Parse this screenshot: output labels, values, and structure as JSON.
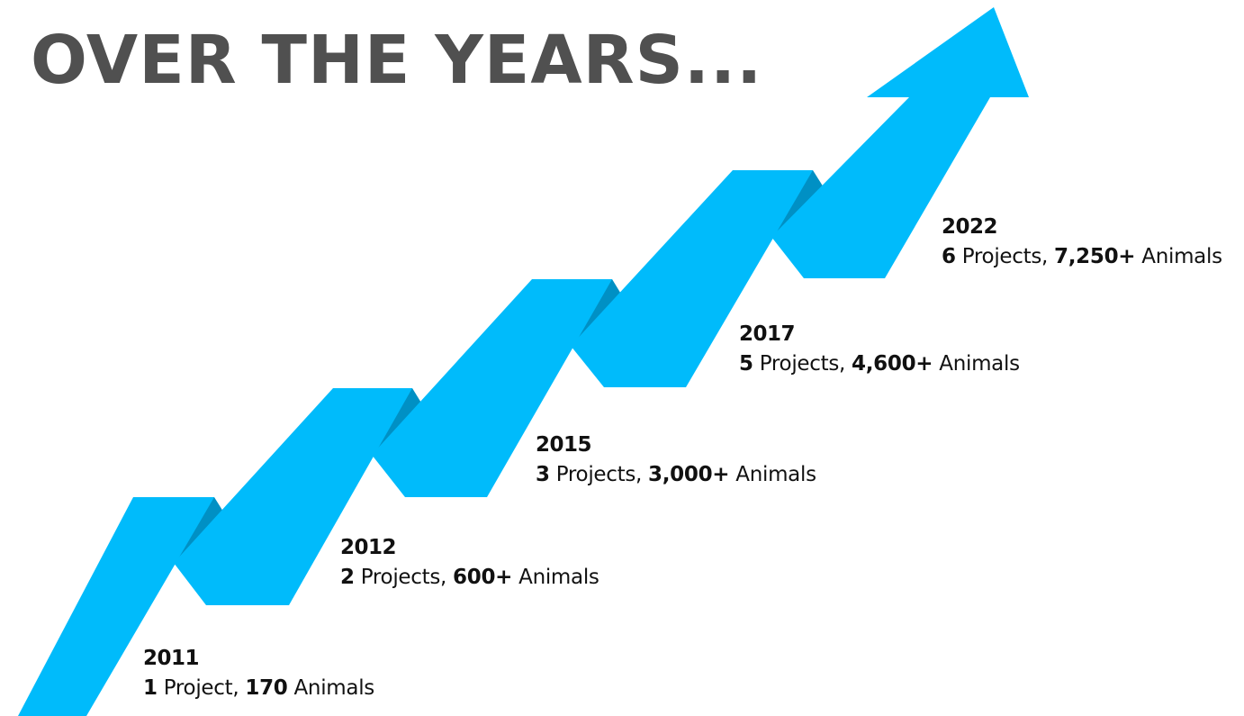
{
  "title": "OVER THE YEARS...",
  "colors": {
    "title": "#505050",
    "arrow": "#00bbfb",
    "arrow_fold": "#0090c4",
    "text": "#111111"
  },
  "milestones": [
    {
      "year": "2011",
      "project_count": "1",
      "project_word": " Project, ",
      "animal_count": "170",
      "animal_word": " Animals"
    },
    {
      "year": "2012",
      "project_count": "2",
      "project_word": " Projects, ",
      "animal_count": "600+",
      "animal_word": " Animals"
    },
    {
      "year": "2015",
      "project_count": "3",
      "project_word": " Projects, ",
      "animal_count": "3,000+",
      "animal_word": " Animals"
    },
    {
      "year": "2017",
      "project_count": "5",
      "project_word": " Projects, ",
      "animal_count": "4,600+",
      "animal_word": " Animals"
    },
    {
      "year": "2022",
      "project_count": "6",
      "project_word": " Projects, ",
      "animal_count": "7,250+",
      "animal_word": " Animals"
    }
  ]
}
